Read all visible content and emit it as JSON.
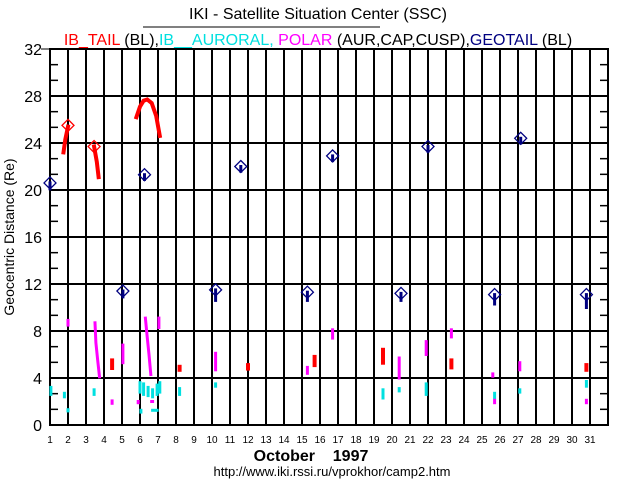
{
  "chart_data": {
    "type": "scatter",
    "title": "IKI - Satellite Situation Center (SSC)",
    "legend": [
      {
        "text": "IB_TAIL",
        "color": "#ff0000"
      },
      {
        "text": " (BL),",
        "color": "#000000"
      },
      {
        "text": "IB__AURORAL, ",
        "color": "#00e0e0"
      },
      {
        "text": "POLAR",
        "color": "#ff00ff"
      },
      {
        "text": " (AUR,CAP,CUSP),",
        "color": "#000000"
      },
      {
        "text": "GEOTAIL",
        "color": "#000080"
      },
      {
        "text": " (BL)",
        "color": "#000000"
      }
    ],
    "ylabel": "Geocentric Distance (Re)",
    "xlabel": "October    1997",
    "source_url": "http://www.iki.rssi.ru/vprokhor/camp2.htm",
    "xlim": [
      1,
      32
    ],
    "ylim": [
      0,
      32
    ],
    "x_ticks": [
      "1",
      "2",
      "3",
      "4",
      "5",
      "6",
      "7",
      "8",
      "9",
      "10",
      "11",
      "12",
      "13",
      "14",
      "15",
      "16",
      "17",
      "18",
      "19",
      "20",
      "21",
      "22",
      "23",
      "24",
      "25",
      "26",
      "27",
      "28",
      "29",
      "30",
      "31"
    ],
    "y_ticks": [
      "0",
      "4",
      "8",
      "12",
      "16",
      "20",
      "24",
      "28",
      "32"
    ],
    "grid": true,
    "series": [
      {
        "name": "IB_TAIL",
        "color": "#ff0000",
        "width": 4,
        "tracks": [
          [
            [
              1.75,
              23.2
            ],
            [
              1.85,
              24.3
            ],
            [
              2.0,
              25.4
            ]
          ],
          [
            [
              3.45,
              23.7
            ],
            [
              3.6,
              22.4
            ],
            [
              3.7,
              21.1
            ]
          ],
          [
            [
              5.8,
              26.2
            ],
            [
              6.0,
              27.1
            ],
            [
              6.2,
              27.6
            ],
            [
              6.4,
              27.7
            ],
            [
              6.65,
              27.4
            ],
            [
              6.9,
              26.3
            ],
            [
              7.1,
              24.6
            ]
          ],
          [
            [
              4.45,
              5.5
            ],
            [
              4.45,
              4.85
            ]
          ],
          [
            [
              8.2,
              4.95
            ],
            [
              8.2,
              4.7
            ]
          ],
          [
            [
              12.0,
              5.1
            ],
            [
              12.0,
              4.8
            ]
          ],
          [
            [
              15.7,
              5.8
            ],
            [
              15.7,
              5.1
            ]
          ],
          [
            [
              19.5,
              6.4
            ],
            [
              19.5,
              5.3
            ]
          ],
          [
            [
              23.3,
              5.5
            ],
            [
              23.3,
              4.9
            ]
          ],
          [
            [
              30.8,
              5.1
            ],
            [
              30.8,
              4.7
            ]
          ]
        ],
        "markers": [
          [
            2.0,
            25.5
          ],
          [
            3.45,
            23.7
          ]
        ]
      },
      {
        "name": "IB__AURORAL",
        "color": "#00e0e0",
        "width": 3,
        "tracks": [
          [
            [
              1.05,
              3.2
            ],
            [
              1.05,
              2.6
            ]
          ],
          [
            [
              1.8,
              2.7
            ],
            [
              1.8,
              2.4
            ]
          ],
          [
            [
              2.0,
              1.3
            ],
            [
              2.0,
              1.2
            ]
          ],
          [
            [
              3.45,
              3.0
            ],
            [
              3.45,
              2.6
            ]
          ],
          [
            [
              6.0,
              3.6
            ],
            [
              6.0,
              2.8
            ]
          ],
          [
            [
              6.2,
              3.5
            ],
            [
              6.2,
              2.6
            ]
          ],
          [
            [
              6.45,
              3.2
            ],
            [
              6.45,
              2.5
            ]
          ],
          [
            [
              6.7,
              3.0
            ],
            [
              6.7,
              2.4
            ]
          ],
          [
            [
              6.95,
              3.4
            ],
            [
              6.95,
              2.6
            ]
          ],
          [
            [
              7.1,
              3.6
            ],
            [
              7.1,
              2.8
            ]
          ],
          [
            [
              6.05,
              1.25
            ],
            [
              6.05,
              1.1
            ]
          ],
          [
            [
              6.7,
              1.25
            ],
            [
              6.95,
              1.25
            ]
          ],
          [
            [
              8.2,
              3.1
            ],
            [
              8.2,
              2.6
            ]
          ],
          [
            [
              10.2,
              3.5
            ],
            [
              10.2,
              3.3
            ]
          ],
          [
            [
              19.5,
              3.0
            ],
            [
              19.5,
              2.3
            ]
          ],
          [
            [
              20.4,
              3.1
            ],
            [
              20.4,
              2.9
            ]
          ],
          [
            [
              21.9,
              3.5
            ],
            [
              21.9,
              2.6
            ]
          ],
          [
            [
              25.7,
              2.7
            ],
            [
              25.7,
              2.3
            ]
          ],
          [
            [
              27.1,
              3.0
            ],
            [
              27.1,
              2.8
            ]
          ],
          [
            [
              30.8,
              3.7
            ],
            [
              30.8,
              3.3
            ]
          ]
        ],
        "markers": []
      },
      {
        "name": "POLAR",
        "color": "#ff00ff",
        "width": 3,
        "tracks": [
          [
            [
              2.0,
              8.9
            ],
            [
              2.0,
              8.5
            ]
          ],
          [
            [
              3.5,
              8.7
            ],
            [
              3.55,
              7.0
            ],
            [
              3.65,
              5.5
            ],
            [
              3.75,
              4.1
            ]
          ],
          [
            [
              5.05,
              6.8
            ],
            [
              5.05,
              5.3
            ]
          ],
          [
            [
              6.3,
              9.1
            ],
            [
              6.4,
              7.5
            ],
            [
              6.5,
              6.0
            ],
            [
              6.6,
              4.3
            ]
          ],
          [
            [
              7.05,
              9.1
            ],
            [
              7.05,
              8.3
            ]
          ],
          [
            [
              4.45,
              2.05
            ],
            [
              4.45,
              1.85
            ]
          ],
          [
            [
              5.9,
              2.0
            ],
            [
              5.9,
              1.9
            ]
          ],
          [
            [
              6.65,
              2.0
            ],
            [
              6.7,
              2.0
            ]
          ],
          [
            [
              10.2,
              6.1
            ],
            [
              10.2,
              4.7
            ]
          ],
          [
            [
              15.3,
              4.9
            ],
            [
              15.3,
              4.4
            ]
          ],
          [
            [
              16.7,
              8.1
            ],
            [
              16.7,
              7.4
            ]
          ],
          [
            [
              20.4,
              5.7
            ],
            [
              20.4,
              4.0
            ]
          ],
          [
            [
              21.9,
              7.1
            ],
            [
              21.9,
              6.0
            ]
          ],
          [
            [
              23.3,
              8.1
            ],
            [
              23.3,
              7.5
            ]
          ],
          [
            [
              25.6,
              4.35
            ],
            [
              25.6,
              4.15
            ]
          ],
          [
            [
              25.7,
              2.1
            ],
            [
              25.7,
              1.9
            ]
          ],
          [
            [
              27.1,
              5.3
            ],
            [
              27.1,
              4.7
            ]
          ],
          [
            [
              30.8,
              2.1
            ],
            [
              30.8,
              1.9
            ]
          ]
        ],
        "markers": []
      },
      {
        "name": "GEOTAIL",
        "color": "#000080",
        "width": 3,
        "tracks": [
          [
            [
              1.0,
              20.6
            ],
            [
              1.0,
              20.1
            ]
          ],
          [
            [
              6.25,
              21.3
            ],
            [
              6.25,
              20.9
            ]
          ],
          [
            [
              11.6,
              22.0
            ],
            [
              11.6,
              21.6
            ]
          ],
          [
            [
              16.7,
              22.9
            ],
            [
              16.7,
              22.5
            ]
          ],
          [
            [
              22.0,
              23.7
            ],
            [
              22.0,
              23.3
            ]
          ],
          [
            [
              27.15,
              24.4
            ],
            [
              27.15,
              24.0
            ]
          ],
          [
            [
              5.05,
              11.4
            ],
            [
              5.05,
              10.9
            ]
          ],
          [
            [
              10.2,
              11.5
            ],
            [
              10.2,
              10.6
            ]
          ],
          [
            [
              15.3,
              11.3
            ],
            [
              15.3,
              10.6
            ]
          ],
          [
            [
              20.5,
              11.2
            ],
            [
              20.5,
              10.6
            ]
          ],
          [
            [
              25.7,
              11.1
            ],
            [
              25.7,
              10.3
            ]
          ],
          [
            [
              30.8,
              11.1
            ],
            [
              30.8,
              10.0
            ]
          ]
        ],
        "markers": [
          [
            1.0,
            20.6
          ],
          [
            6.25,
            21.3
          ],
          [
            11.6,
            22.0
          ],
          [
            16.7,
            22.9
          ],
          [
            22.0,
            23.7
          ],
          [
            27.15,
            24.4
          ],
          [
            5.05,
            11.4
          ],
          [
            10.2,
            11.5
          ],
          [
            15.3,
            11.3
          ],
          [
            20.5,
            11.2
          ],
          [
            25.7,
            11.1
          ],
          [
            30.8,
            11.1
          ]
        ]
      }
    ]
  }
}
